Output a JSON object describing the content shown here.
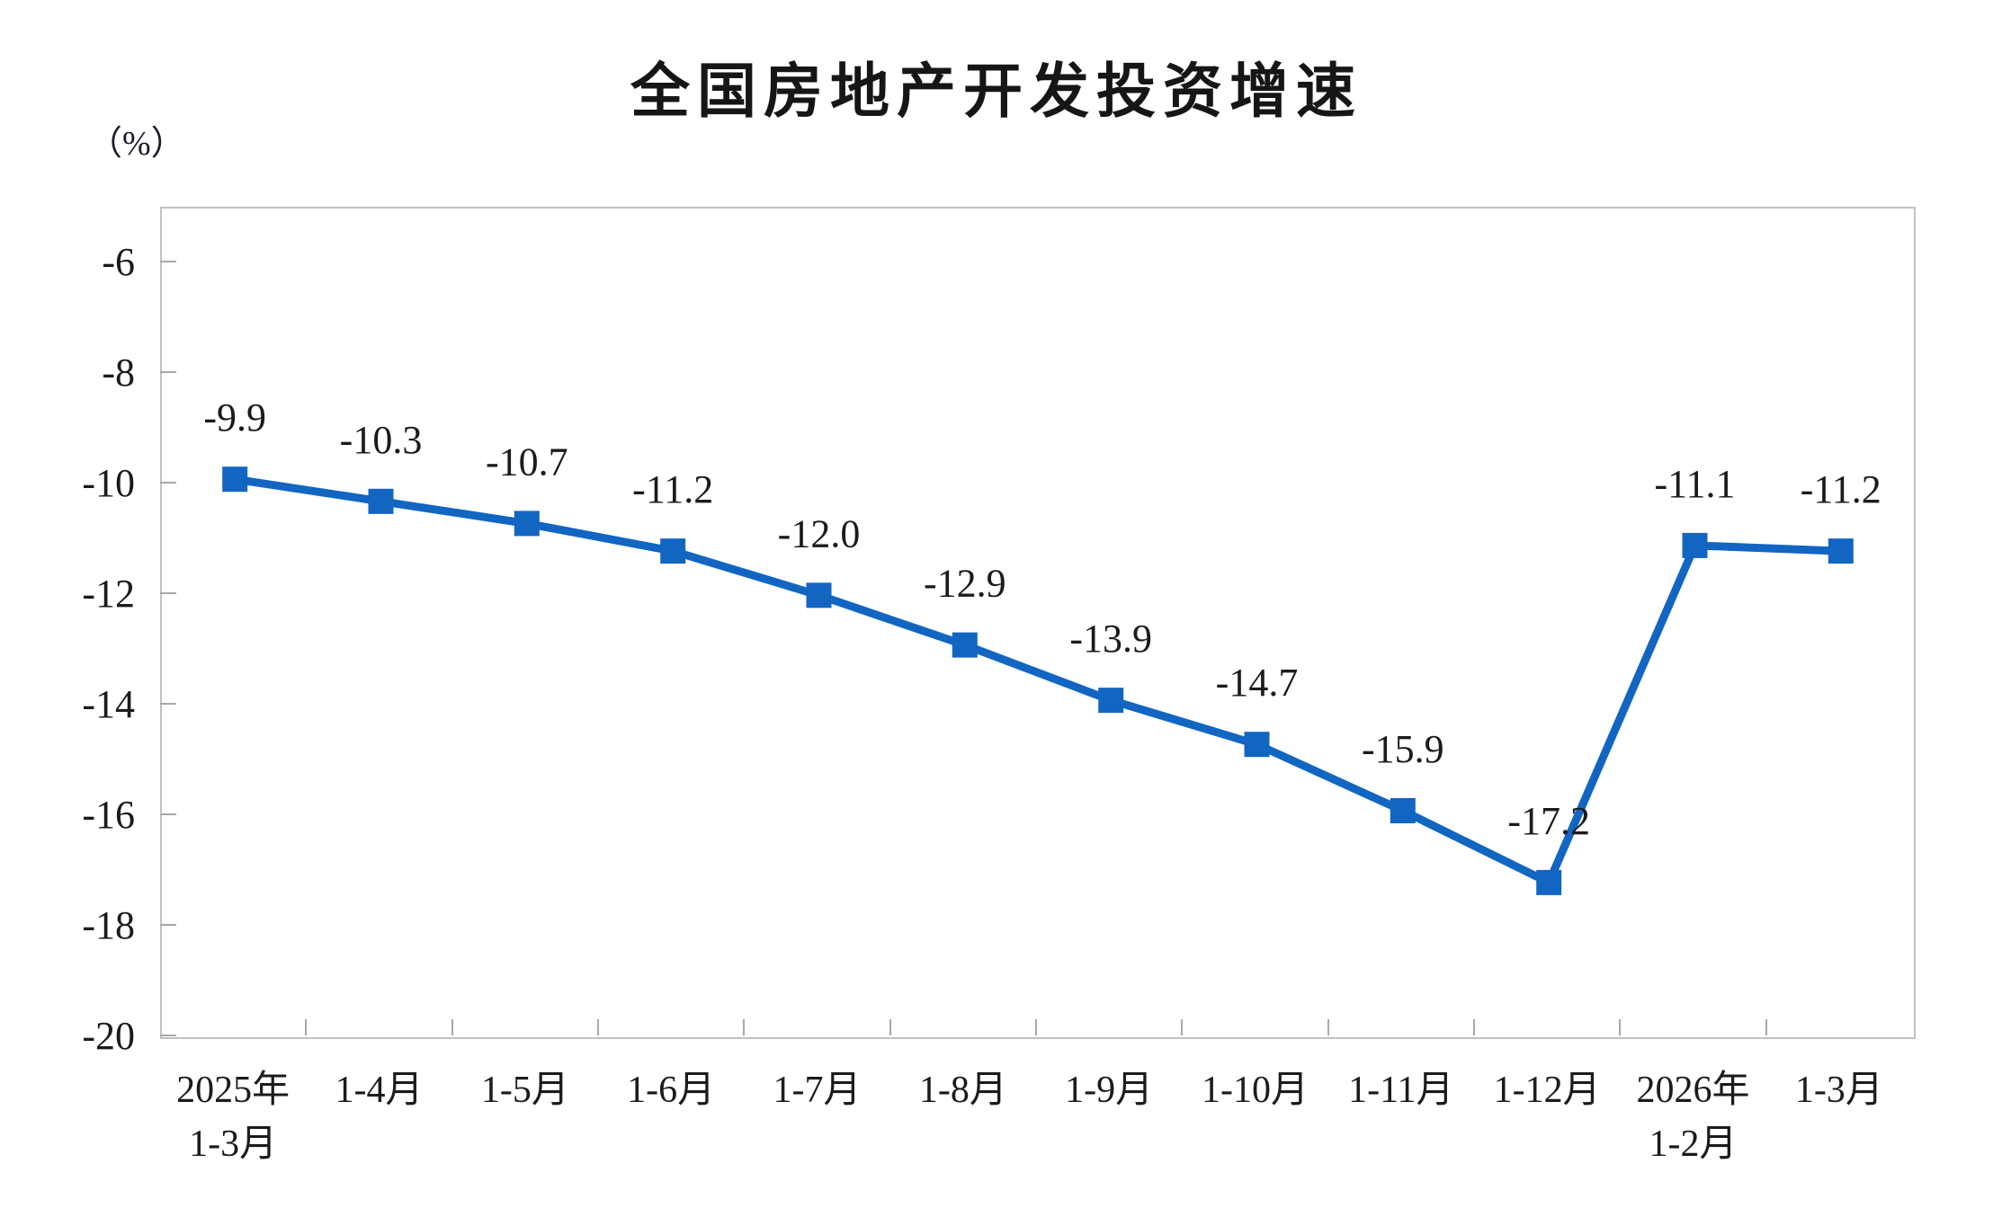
{
  "title": "全国房地产开发投资增速",
  "y_axis": {
    "unit_label": "（%）"
  },
  "chart_data": {
    "type": "line",
    "title": "全国房地产开发投资增速",
    "unit_label": "（%）",
    "categories": [
      "2025年\n1-3月",
      "1-4月",
      "1-5月",
      "1-6月",
      "1-7月",
      "1-8月",
      "1-9月",
      "1-10月",
      "1-11月",
      "1-12月",
      "2026年\n1-2月",
      "1-3月"
    ],
    "values": [
      -9.9,
      -10.3,
      -10.7,
      -11.2,
      -12.0,
      -12.9,
      -13.9,
      -14.7,
      -15.9,
      -17.2,
      -11.1,
      -11.2
    ],
    "data_labels": [
      "-9.9",
      "-10.3",
      "-10.7",
      "-11.2",
      "-12.0",
      "-12.9",
      "-13.9",
      "-14.7",
      "-15.9",
      "-17.2",
      "-11.1",
      "-11.2"
    ],
    "y_ticks": [
      -6,
      -8,
      -10,
      -12,
      -14,
      -16,
      -18,
      -20
    ],
    "ylim": [
      -20,
      -5
    ],
    "grid": false,
    "legend": false,
    "colors": {
      "line": "#1266C2",
      "axis_border": "#C1C1C1",
      "tick": "#A8A8A8",
      "text": "#1B1B1B"
    }
  }
}
